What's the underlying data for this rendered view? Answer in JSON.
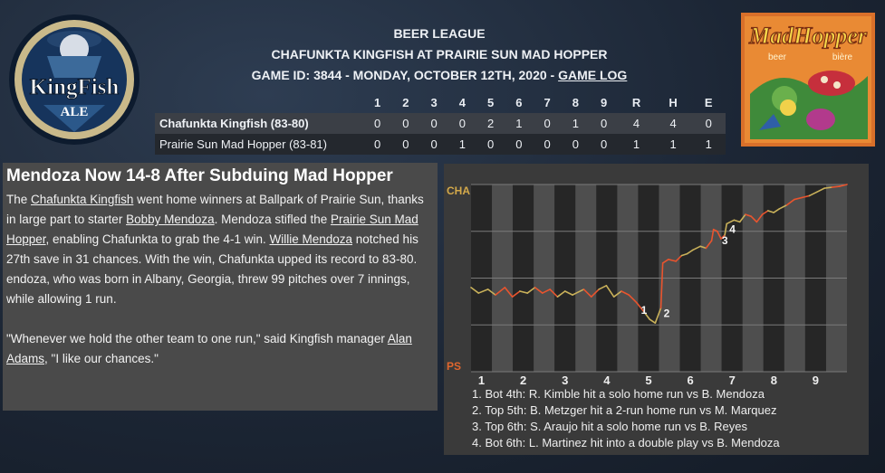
{
  "header": {
    "league": "BEER LEAGUE",
    "matchup": "CHAFUNKTA KINGFISH AT PRAIRIE SUN MAD HOPPER",
    "game_info": "GAME ID: 3844 - MONDAY, OCTOBER 12TH, 2020 -",
    "game_log_link": "GAME LOG"
  },
  "logos": {
    "left_text_1": "KingFish",
    "left_text_2": "ALE",
    "right_title": "MadHopper",
    "right_sub_1": "beer",
    "right_sub_2": "bière"
  },
  "linescore": {
    "headers": [
      "",
      "1",
      "2",
      "3",
      "4",
      "5",
      "6",
      "7",
      "8",
      "9",
      "R",
      "H",
      "E"
    ],
    "rows": [
      {
        "team": "Chafunkta Kingfish (83-80)",
        "cells": [
          "0",
          "0",
          "0",
          "0",
          "2",
          "1",
          "0",
          "1",
          "0",
          "4",
          "4",
          "0"
        ]
      },
      {
        "team": "Prairie Sun Mad Hopper (83-81)",
        "cells": [
          "0",
          "0",
          "0",
          "1",
          "0",
          "0",
          "0",
          "0",
          "0",
          "1",
          "1",
          "1"
        ]
      }
    ]
  },
  "story": {
    "headline": "Mendoza Now 14-8 After Subduing Mad Hopper",
    "p1": {
      "t1": "The ",
      "l1": "Chafunkta Kingfish",
      "t2": " went home winners at Ballpark of Prairie Sun, thanks in large part to starter ",
      "l2": "Bobby Mendoza",
      "t3": ". Mendoza stifled the ",
      "l3": "Prairie Sun Mad Hopper",
      "t4": ", enabling Chafunkta to grab the 4-1 win. ",
      "l4": "Willie Mendoza",
      "t5": " notched his 27th save in 31 chances. With the win, Chafunkta upped its record to 83-80."
    },
    "p2": "endoza, who was born in Albany, Georgia, threw 99 pitches over 7 innings, while allowing 1 run.",
    "p3": {
      "t1": "\"Whenever we hold the other team to one run,\" said Kingfish manager ",
      "l1": "Alan Adams",
      "t2": ", \"I like our chances.\""
    }
  },
  "chart_data": {
    "type": "line",
    "title": "",
    "y_labels": {
      "top": "CHA",
      "bottom": "PS"
    },
    "x_tick_labels": [
      "1",
      "2",
      "3",
      "4",
      "5",
      "6",
      "7",
      "8",
      "9"
    ],
    "ylim": [
      0,
      1
    ],
    "colors": {
      "cha": "#c9b15a",
      "ps": "#e8542e",
      "top_label": "#d4a94a",
      "bottom_label": "#e0662e"
    },
    "win_probability": [
      [
        0.0,
        0.45
      ],
      [
        0.02,
        0.42
      ],
      [
        0.045,
        0.44
      ],
      [
        0.065,
        0.41
      ],
      [
        0.09,
        0.45
      ],
      [
        0.11,
        0.4
      ],
      [
        0.13,
        0.43
      ],
      [
        0.15,
        0.42
      ],
      [
        0.17,
        0.45
      ],
      [
        0.19,
        0.42
      ],
      [
        0.21,
        0.44
      ],
      [
        0.23,
        0.4
      ],
      [
        0.25,
        0.43
      ],
      [
        0.27,
        0.41
      ],
      [
        0.3,
        0.44
      ],
      [
        0.32,
        0.4
      ],
      [
        0.34,
        0.44
      ],
      [
        0.36,
        0.46
      ],
      [
        0.38,
        0.4
      ],
      [
        0.4,
        0.43
      ],
      [
        0.42,
        0.41
      ],
      [
        0.435,
        0.38
      ],
      [
        0.44,
        0.37
      ],
      [
        0.46,
        0.32
      ],
      [
        0.475,
        0.28
      ],
      [
        0.49,
        0.26
      ],
      [
        0.505,
        0.34
      ],
      [
        0.51,
        0.58
      ],
      [
        0.525,
        0.6
      ],
      [
        0.545,
        0.59
      ],
      [
        0.56,
        0.62
      ],
      [
        0.575,
        0.63
      ],
      [
        0.59,
        0.65
      ],
      [
        0.61,
        0.67
      ],
      [
        0.625,
        0.66
      ],
      [
        0.64,
        0.7
      ],
      [
        0.645,
        0.76
      ],
      [
        0.655,
        0.75
      ],
      [
        0.665,
        0.71
      ],
      [
        0.675,
        0.73
      ],
      [
        0.68,
        0.79
      ],
      [
        0.7,
        0.81
      ],
      [
        0.715,
        0.8
      ],
      [
        0.73,
        0.84
      ],
      [
        0.745,
        0.83
      ],
      [
        0.76,
        0.8
      ],
      [
        0.775,
        0.84
      ],
      [
        0.79,
        0.86
      ],
      [
        0.805,
        0.85
      ],
      [
        0.82,
        0.87
      ],
      [
        0.84,
        0.89
      ],
      [
        0.86,
        0.92
      ],
      [
        0.88,
        0.93
      ],
      [
        0.9,
        0.94
      ],
      [
        0.92,
        0.96
      ],
      [
        0.94,
        0.98
      ],
      [
        0.96,
        0.985
      ],
      [
        0.98,
        0.99
      ],
      [
        1.0,
        1.0
      ]
    ],
    "event_markers": [
      {
        "label": "1",
        "at": 0.445
      },
      {
        "label": "2",
        "at": 0.505
      },
      {
        "label": "3",
        "at": 0.66
      },
      {
        "label": "4",
        "at": 0.68
      }
    ],
    "events": [
      "1. Bot 4th: R. Kimble hit a solo home run vs B. Mendoza",
      "2. Top 5th: B. Metzger hit a 2-run home run vs M. Marquez",
      "3. Top 6th: S. Araujo hit a solo home run vs B. Reyes",
      "4. Bot 6th: L. Martinez hit into a double play vs B. Mendoza"
    ]
  }
}
